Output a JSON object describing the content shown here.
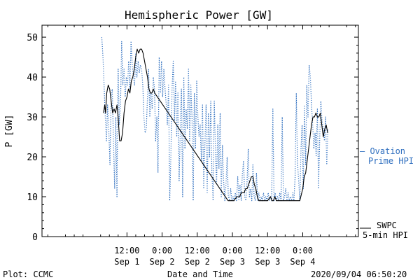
{
  "chart_data": {
    "type": "line",
    "title": "Hemispheric Power [GW]",
    "xlabel": "Date and Time",
    "ylabel": "P [GW]",
    "ylim": [
      0,
      53
    ],
    "xlim_hours": [
      -17,
      91
    ],
    "yticks": [
      0,
      10,
      20,
      30,
      40,
      50
    ],
    "xticks": [
      {
        "hour": 12,
        "time": "12:00",
        "date": "Sep 1"
      },
      {
        "hour": 24,
        "time": "0:00",
        "date": "Sep 2"
      },
      {
        "hour": 36,
        "time": "12:00",
        "date": "Sep 2"
      },
      {
        "hour": 48,
        "time": "0:00",
        "date": "Sep 3"
      },
      {
        "hour": 60,
        "time": "12:00",
        "date": "Sep 3"
      },
      {
        "hour": 72,
        "time": "0:00",
        "date": "Sep 4"
      }
    ],
    "footer_left": "Plot: CCMC",
    "footer_right": "2020/09/04 06:50:20",
    "grid": false,
    "series": [
      {
        "name": "SWPC 5-min HPI",
        "legend_line1": "SWPC",
        "legend_line2": "5-min HPI",
        "color": "#000000",
        "style": "solid",
        "points": [
          [
            4.0,
            31
          ],
          [
            4.4,
            33
          ],
          [
            4.7,
            31
          ],
          [
            5.1,
            36
          ],
          [
            5.6,
            38
          ],
          [
            6.1,
            37
          ],
          [
            6.6,
            34
          ],
          [
            7.1,
            31
          ],
          [
            7.6,
            32
          ],
          [
            8.1,
            31
          ],
          [
            8.6,
            33
          ],
          [
            9.0,
            30
          ],
          [
            9.5,
            24
          ],
          [
            10.0,
            24
          ],
          [
            10.5,
            26
          ],
          [
            11.0,
            31
          ],
          [
            11.5,
            34
          ],
          [
            12.0,
            35
          ],
          [
            12.5,
            37
          ],
          [
            13.0,
            36
          ],
          [
            13.5,
            39
          ],
          [
            14.0,
            40
          ],
          [
            14.5,
            42
          ],
          [
            15.0,
            45
          ],
          [
            15.5,
            47
          ],
          [
            16.0,
            46
          ],
          [
            16.5,
            47
          ],
          [
            17.0,
            47
          ],
          [
            17.5,
            46
          ],
          [
            18.0,
            44
          ],
          [
            18.5,
            42
          ],
          [
            19.0,
            40
          ],
          [
            19.5,
            37
          ],
          [
            20.0,
            36
          ],
          [
            20.5,
            36
          ],
          [
            21.0,
            37
          ],
          [
            21.5,
            36
          ],
          [
            46.5,
            9
          ],
          [
            47.5,
            9
          ],
          [
            48.5,
            9
          ],
          [
            49.5,
            10
          ],
          [
            50.5,
            10
          ],
          [
            51.0,
            11
          ],
          [
            52.0,
            11
          ],
          [
            52.5,
            12
          ],
          [
            53.0,
            12
          ],
          [
            53.5,
            13
          ],
          [
            54.0,
            14
          ],
          [
            54.5,
            15
          ],
          [
            55.0,
            15
          ],
          [
            55.5,
            13
          ],
          [
            56.0,
            12
          ],
          [
            56.5,
            10
          ],
          [
            57.0,
            9
          ],
          [
            58.0,
            9
          ],
          [
            59.0,
            9
          ],
          [
            60.0,
            9
          ],
          [
            61.0,
            10
          ],
          [
            61.5,
            9
          ],
          [
            62.0,
            9
          ],
          [
            62.5,
            10
          ],
          [
            63.0,
            9
          ],
          [
            64.0,
            9
          ],
          [
            65.0,
            9
          ],
          [
            66.0,
            9
          ],
          [
            67.0,
            9
          ],
          [
            68.0,
            9
          ],
          [
            69.0,
            9
          ],
          [
            70.0,
            9
          ],
          [
            71.0,
            9
          ],
          [
            72.0,
            12
          ],
          [
            72.5,
            15
          ],
          [
            73.0,
            16
          ],
          [
            73.5,
            19
          ],
          [
            74.0,
            22
          ],
          [
            74.5,
            25
          ],
          [
            75.0,
            28
          ],
          [
            75.5,
            30
          ],
          [
            76.0,
            30
          ],
          [
            76.5,
            31
          ],
          [
            77.0,
            30
          ],
          [
            77.5,
            30
          ],
          [
            78.0,
            31
          ],
          [
            78.5,
            28
          ],
          [
            79.0,
            25
          ],
          [
            79.5,
            27
          ],
          [
            80.0,
            28
          ],
          [
            80.5,
            26
          ]
        ]
      },
      {
        "name": "Ovation Prime HPI",
        "legend_line1": "— Ovation",
        "legend_line2": "Prime HPI",
        "color": "#2f6fbf",
        "style": "dotted",
        "points": [
          [
            3.4,
            50
          ],
          [
            3.8,
            45
          ],
          [
            4.2,
            38
          ],
          [
            4.6,
            30
          ],
          [
            5.0,
            24
          ],
          [
            5.4,
            33
          ],
          [
            5.8,
            27
          ],
          [
            6.2,
            18
          ],
          [
            6.6,
            35
          ],
          [
            7.0,
            37
          ],
          [
            7.4,
            24
          ],
          [
            7.8,
            12
          ],
          [
            8.2,
            30
          ],
          [
            8.6,
            10
          ],
          [
            9.0,
            42
          ],
          [
            9.4,
            28
          ],
          [
            9.8,
            33
          ],
          [
            10.2,
            49
          ],
          [
            10.6,
            38
          ],
          [
            11.0,
            42
          ],
          [
            11.4,
            35
          ],
          [
            11.8,
            40
          ],
          [
            12.2,
            38
          ],
          [
            12.6,
            44
          ],
          [
            13.0,
            37
          ],
          [
            13.4,
            49
          ],
          [
            13.8,
            43
          ],
          [
            14.2,
            40
          ],
          [
            14.6,
            38
          ],
          [
            15.0,
            46
          ],
          [
            15.4,
            40
          ],
          [
            15.8,
            44
          ],
          [
            16.2,
            41
          ],
          [
            16.6,
            43
          ],
          [
            17.0,
            42
          ],
          [
            17.4,
            38
          ],
          [
            17.8,
            30
          ],
          [
            18.2,
            26
          ],
          [
            18.6,
            27
          ],
          [
            19.0,
            35
          ],
          [
            19.4,
            42
          ],
          [
            19.8,
            30
          ],
          [
            20.2,
            36
          ],
          [
            20.6,
            32
          ],
          [
            21.0,
            40
          ],
          [
            21.4,
            37
          ],
          [
            21.8,
            24
          ],
          [
            22.2,
            30
          ],
          [
            22.6,
            16
          ],
          [
            23.0,
            45
          ],
          [
            23.4,
            36
          ],
          [
            23.8,
            44
          ],
          [
            24.2,
            35
          ],
          [
            24.6,
            42
          ],
          [
            25.0,
            37
          ],
          [
            25.4,
            33
          ],
          [
            25.8,
            28
          ],
          [
            26.2,
            38
          ],
          [
            26.6,
            9
          ],
          [
            27.0,
            20
          ],
          [
            27.4,
            37
          ],
          [
            27.8,
            44
          ],
          [
            28.2,
            29
          ],
          [
            28.6,
            39
          ],
          [
            29.0,
            25
          ],
          [
            29.4,
            36
          ],
          [
            29.8,
            14
          ],
          [
            30.2,
            26
          ],
          [
            30.6,
            37
          ],
          [
            31.0,
            10
          ],
          [
            31.4,
            40
          ],
          [
            31.8,
            22
          ],
          [
            32.2,
            32
          ],
          [
            32.6,
            27
          ],
          [
            33.0,
            42
          ],
          [
            33.4,
            24
          ],
          [
            33.8,
            38
          ],
          [
            34.2,
            30
          ],
          [
            34.6,
            9
          ],
          [
            35.0,
            36
          ],
          [
            35.4,
            22
          ],
          [
            35.8,
            39
          ],
          [
            36.2,
            30
          ],
          [
            36.6,
            25
          ],
          [
            37.0,
            28
          ],
          [
            37.4,
            19
          ],
          [
            37.8,
            33
          ],
          [
            38.2,
            12
          ],
          [
            38.6,
            23
          ],
          [
            39.0,
            33
          ],
          [
            39.4,
            11
          ],
          [
            39.8,
            31
          ],
          [
            40.2,
            20
          ],
          [
            40.6,
            34
          ],
          [
            41.0,
            16
          ],
          [
            41.4,
            9
          ],
          [
            41.8,
            34
          ],
          [
            42.2,
            22
          ],
          [
            42.6,
            13
          ],
          [
            43.0,
            28
          ],
          [
            43.4,
            17
          ],
          [
            43.8,
            31
          ],
          [
            44.2,
            10
          ],
          [
            44.6,
            23
          ],
          [
            45.0,
            14
          ],
          [
            45.4,
            9
          ],
          [
            45.8,
            13
          ],
          [
            46.2,
            20
          ],
          [
            46.6,
            10
          ],
          [
            47.0,
            9
          ],
          [
            47.4,
            12
          ],
          [
            47.8,
            9
          ],
          [
            48.2,
            10
          ],
          [
            48.6,
            9
          ],
          [
            49.0,
            11
          ],
          [
            49.4,
            9
          ],
          [
            49.8,
            15
          ],
          [
            50.2,
            9
          ],
          [
            50.6,
            13
          ],
          [
            51.0,
            9
          ],
          [
            51.4,
            16
          ],
          [
            51.8,
            19
          ],
          [
            52.2,
            10
          ],
          [
            52.6,
            9
          ],
          [
            53.0,
            14
          ],
          [
            53.4,
            22
          ],
          [
            53.8,
            10
          ],
          [
            54.2,
            12
          ],
          [
            54.6,
            9
          ],
          [
            55.0,
            18
          ],
          [
            55.4,
            10
          ],
          [
            55.8,
            9
          ],
          [
            56.2,
            16
          ],
          [
            56.6,
            9
          ],
          [
            57.0,
            11
          ],
          [
            57.4,
            9
          ],
          [
            57.8,
            10
          ],
          [
            58.2,
            9
          ],
          [
            58.6,
            11
          ],
          [
            59.0,
            9
          ],
          [
            59.4,
            10
          ],
          [
            59.8,
            9
          ],
          [
            60.2,
            11
          ],
          [
            60.6,
            9
          ],
          [
            61.0,
            10
          ],
          [
            61.4,
            9
          ],
          [
            61.8,
            32
          ],
          [
            62.2,
            9
          ],
          [
            62.6,
            11
          ],
          [
            63.0,
            9
          ],
          [
            63.4,
            10
          ],
          [
            63.8,
            9
          ],
          [
            64.2,
            11
          ],
          [
            64.6,
            9
          ],
          [
            65.0,
            30
          ],
          [
            65.4,
            9
          ],
          [
            65.8,
            10
          ],
          [
            66.2,
            12
          ],
          [
            66.6,
            9
          ],
          [
            67.0,
            11
          ],
          [
            67.4,
            9
          ],
          [
            67.8,
            10
          ],
          [
            68.2,
            9
          ],
          [
            68.6,
            11
          ],
          [
            69.0,
            9
          ],
          [
            69.4,
            15
          ],
          [
            69.8,
            36
          ],
          [
            70.2,
            19
          ],
          [
            70.6,
            14
          ],
          [
            71.0,
            9
          ],
          [
            71.4,
            22
          ],
          [
            71.8,
            28
          ],
          [
            72.2,
            12
          ],
          [
            72.6,
            33
          ],
          [
            73.0,
            18
          ],
          [
            73.4,
            38
          ],
          [
            73.8,
            30
          ],
          [
            74.2,
            43
          ],
          [
            74.6,
            40
          ],
          [
            75.0,
            33
          ],
          [
            75.4,
            28
          ],
          [
            75.8,
            22
          ],
          [
            76.2,
            26
          ],
          [
            76.6,
            20
          ],
          [
            77.0,
            32
          ],
          [
            77.4,
            12
          ],
          [
            77.8,
            25
          ],
          [
            78.2,
            34
          ],
          [
            78.6,
            29
          ],
          [
            79.0,
            27
          ],
          [
            79.4,
            24
          ],
          [
            79.8,
            30
          ],
          [
            80.2,
            18
          ],
          [
            80.6,
            27
          ]
        ]
      }
    ]
  }
}
